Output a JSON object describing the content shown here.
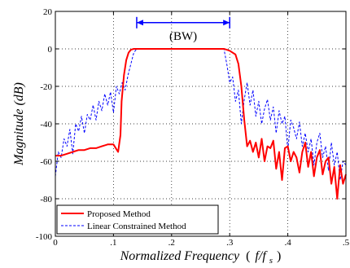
{
  "chart_data": {
    "type": "line",
    "title": "",
    "xlabel_main": "Normalized Frequency",
    "xlabel_unit_open": "(",
    "xlabel_unit_var": "f/f",
    "xlabel_unit_sub": "s",
    "xlabel_unit_close": ")",
    "ylabel": "Magnitude (dB)",
    "xlim": [
      0,
      0.5
    ],
    "ylim": [
      -100,
      20
    ],
    "grid": true,
    "legend_position": "bottom-left",
    "xticks": [
      0,
      0.1,
      0.2,
      0.3,
      0.4,
      0.5
    ],
    "xtick_labels": [
      "0",
      ".1",
      ".2",
      ".3",
      ".4",
      ".5"
    ],
    "yticks": [
      20,
      0,
      -20,
      -40,
      -60,
      -80,
      -100
    ],
    "ytick_labels": [
      "20",
      "0",
      "-20",
      "-40",
      "-60",
      "-80",
      "-100"
    ],
    "annotation": {
      "label": "(BW)",
      "x_start": 0.14,
      "x_end": 0.3,
      "y": 14,
      "color": "#0000ff"
    },
    "series": [
      {
        "name": "Proposed Method",
        "color": "#ff0000",
        "style": "solid",
        "x": [
          0,
          0.01,
          0.02,
          0.03,
          0.04,
          0.05,
          0.06,
          0.07,
          0.08,
          0.09,
          0.1,
          0.108,
          0.112,
          0.114,
          0.118,
          0.122,
          0.126,
          0.13,
          0.135,
          0.14,
          0.15,
          0.2,
          0.28,
          0.29,
          0.295,
          0.3,
          0.31,
          0.315,
          0.32,
          0.325,
          0.33,
          0.335,
          0.34,
          0.345,
          0.35,
          0.355,
          0.36,
          0.365,
          0.37,
          0.375,
          0.38,
          0.385,
          0.39,
          0.395,
          0.4,
          0.405,
          0.41,
          0.415,
          0.42,
          0.425,
          0.43,
          0.435,
          0.44,
          0.445,
          0.45,
          0.455,
          0.46,
          0.465,
          0.47,
          0.475,
          0.48,
          0.485,
          0.49,
          0.495,
          0.5
        ],
        "values": [
          -57,
          -57,
          -56,
          -55,
          -54,
          -54,
          -53,
          -53,
          -52,
          -51,
          -51,
          -55,
          -46,
          -28,
          -14,
          -6,
          -2,
          -0.5,
          0,
          0,
          0,
          0,
          0,
          0,
          -0.5,
          -1,
          -3,
          -8,
          -20,
          -38,
          -52,
          -49,
          -55,
          -50,
          -58,
          -48,
          -60,
          -52,
          -53,
          -49,
          -64,
          -55,
          -70,
          -53,
          -52,
          -60,
          -55,
          -58,
          -66,
          -55,
          -50,
          -63,
          -55,
          -68,
          -58,
          -54,
          -67,
          -60,
          -58,
          -72,
          -63,
          -80,
          -62,
          -72,
          -67
        ]
      },
      {
        "name": "Linear Constrained Method",
        "color": "#0000ff",
        "style": "dashed",
        "x": [
          0,
          0.005,
          0.01,
          0.015,
          0.02,
          0.025,
          0.03,
          0.035,
          0.04,
          0.045,
          0.05,
          0.055,
          0.06,
          0.065,
          0.07,
          0.075,
          0.08,
          0.085,
          0.09,
          0.095,
          0.1,
          0.105,
          0.11,
          0.115,
          0.12,
          0.125,
          0.13,
          0.135,
          0.14,
          0.15,
          0.2,
          0.28,
          0.29,
          0.295,
          0.3,
          0.305,
          0.31,
          0.315,
          0.32,
          0.325,
          0.33,
          0.335,
          0.34,
          0.345,
          0.35,
          0.355,
          0.36,
          0.365,
          0.37,
          0.375,
          0.38,
          0.385,
          0.39,
          0.395,
          0.4,
          0.405,
          0.41,
          0.415,
          0.42,
          0.425,
          0.43,
          0.435,
          0.44,
          0.445,
          0.45,
          0.455,
          0.46,
          0.465,
          0.47,
          0.475,
          0.48,
          0.485,
          0.49,
          0.495,
          0.5
        ],
        "values": [
          -68,
          -55,
          -58,
          -48,
          -52,
          -43,
          -56,
          -40,
          -44,
          -36,
          -45,
          -35,
          -38,
          -30,
          -38,
          -28,
          -33,
          -24,
          -30,
          -23,
          -34,
          -20,
          -24,
          -18,
          -22,
          -14,
          -8,
          -2,
          0,
          0,
          0,
          0,
          0,
          -8,
          -18,
          -15,
          -28,
          -22,
          -40,
          -27,
          -18,
          -30,
          -22,
          -36,
          -28,
          -40,
          -32,
          -27,
          -38,
          -31,
          -45,
          -33,
          -40,
          -36,
          -54,
          -38,
          -42,
          -48,
          -39,
          -52,
          -45,
          -55,
          -48,
          -62,
          -50,
          -45,
          -58,
          -52,
          -65,
          -50,
          -62,
          -55,
          -70,
          -60,
          -62
        ]
      }
    ]
  }
}
